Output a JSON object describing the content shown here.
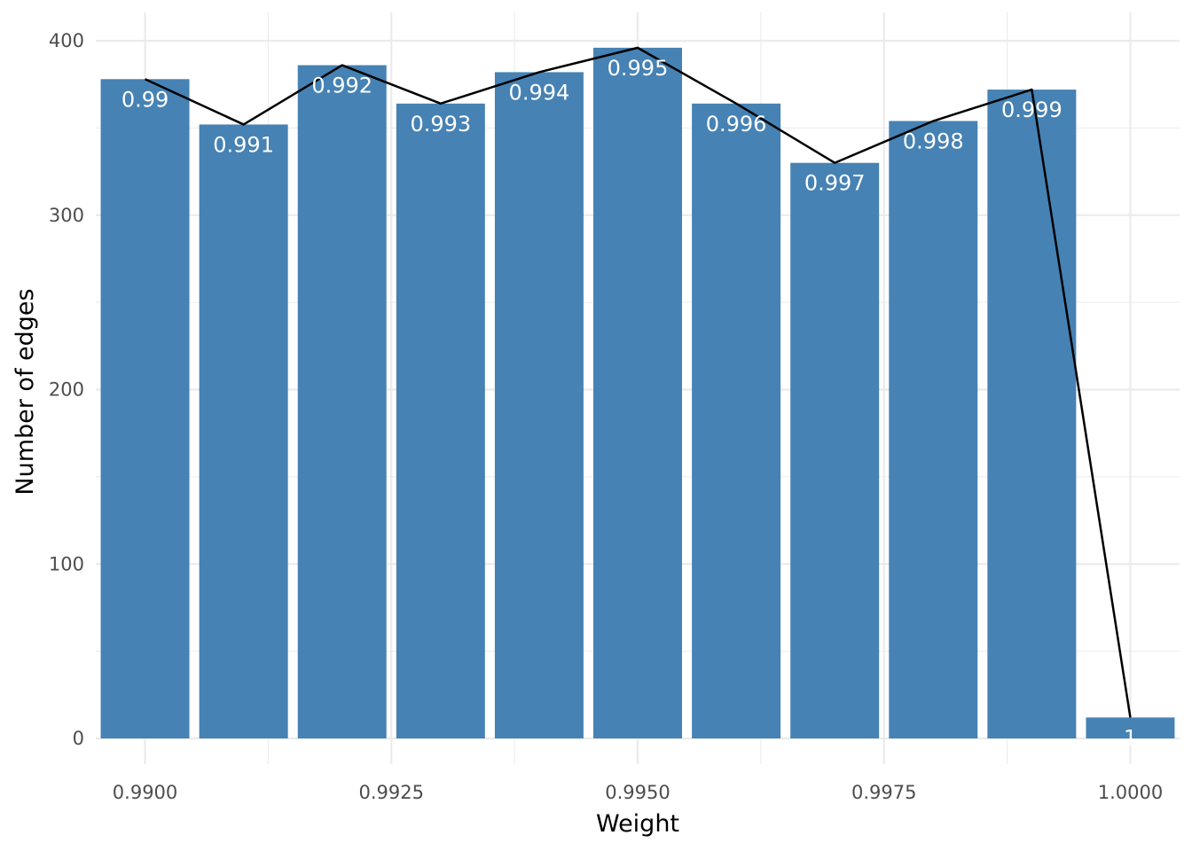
{
  "chart_data": {
    "type": "bar",
    "xlabel": "Weight",
    "ylabel": "Number of edges",
    "x": [
      0.99,
      0.991,
      0.992,
      0.993,
      0.994,
      0.995,
      0.996,
      0.997,
      0.998,
      0.999,
      1.0
    ],
    "values": [
      378,
      352,
      386,
      364,
      382,
      396,
      364,
      330,
      354,
      372,
      12
    ],
    "bar_labels": [
      "0.99",
      "0.991",
      "0.992",
      "0.993",
      "0.994",
      "0.995",
      "0.996",
      "0.997",
      "0.998",
      "0.999",
      "1"
    ],
    "overlay_line": true,
    "xlim": [
      0.9895,
      1.0005
    ],
    "ylim": [
      0,
      400
    ],
    "x_ticks": [
      0.99,
      0.9925,
      0.995,
      0.9975,
      1.0
    ],
    "x_tick_labels": [
      "0.9900",
      "0.9925",
      "0.9950",
      "0.9975",
      "1.0000"
    ],
    "y_ticks": [
      0,
      100,
      200,
      300,
      400
    ],
    "y_tick_labels": [
      "0",
      "100",
      "200",
      "300",
      "400"
    ],
    "grid": true,
    "colors": {
      "bar": "#4682b4",
      "line": "#000000",
      "grid": "#ebebeb"
    }
  }
}
